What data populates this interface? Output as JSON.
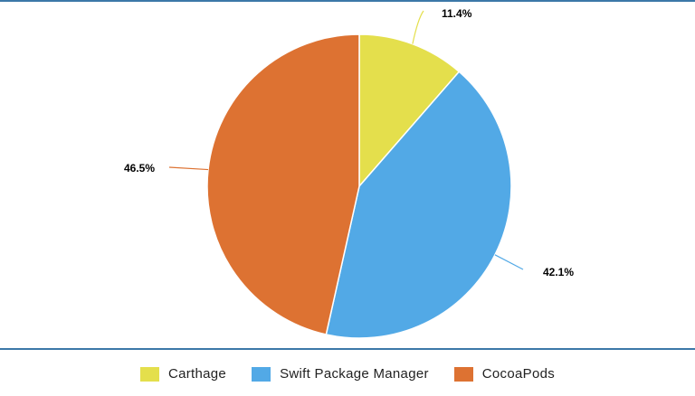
{
  "chart_data": {
    "type": "pie",
    "title": "",
    "series": [
      {
        "name": "Carthage",
        "value": 11.4,
        "label": "11.4%",
        "color": "#e4df4c"
      },
      {
        "name": "Swift Package Manager",
        "value": 42.1,
        "label": "42.1%",
        "color": "#52a9e6"
      },
      {
        "name": "CocoaPods",
        "value": 46.5,
        "label": "46.5%",
        "color": "#dd7232"
      }
    ],
    "start_angle_deg": 0,
    "direction": "clockwise",
    "legend_position": "bottom",
    "data_labels": "outside-with-leader-lines"
  }
}
